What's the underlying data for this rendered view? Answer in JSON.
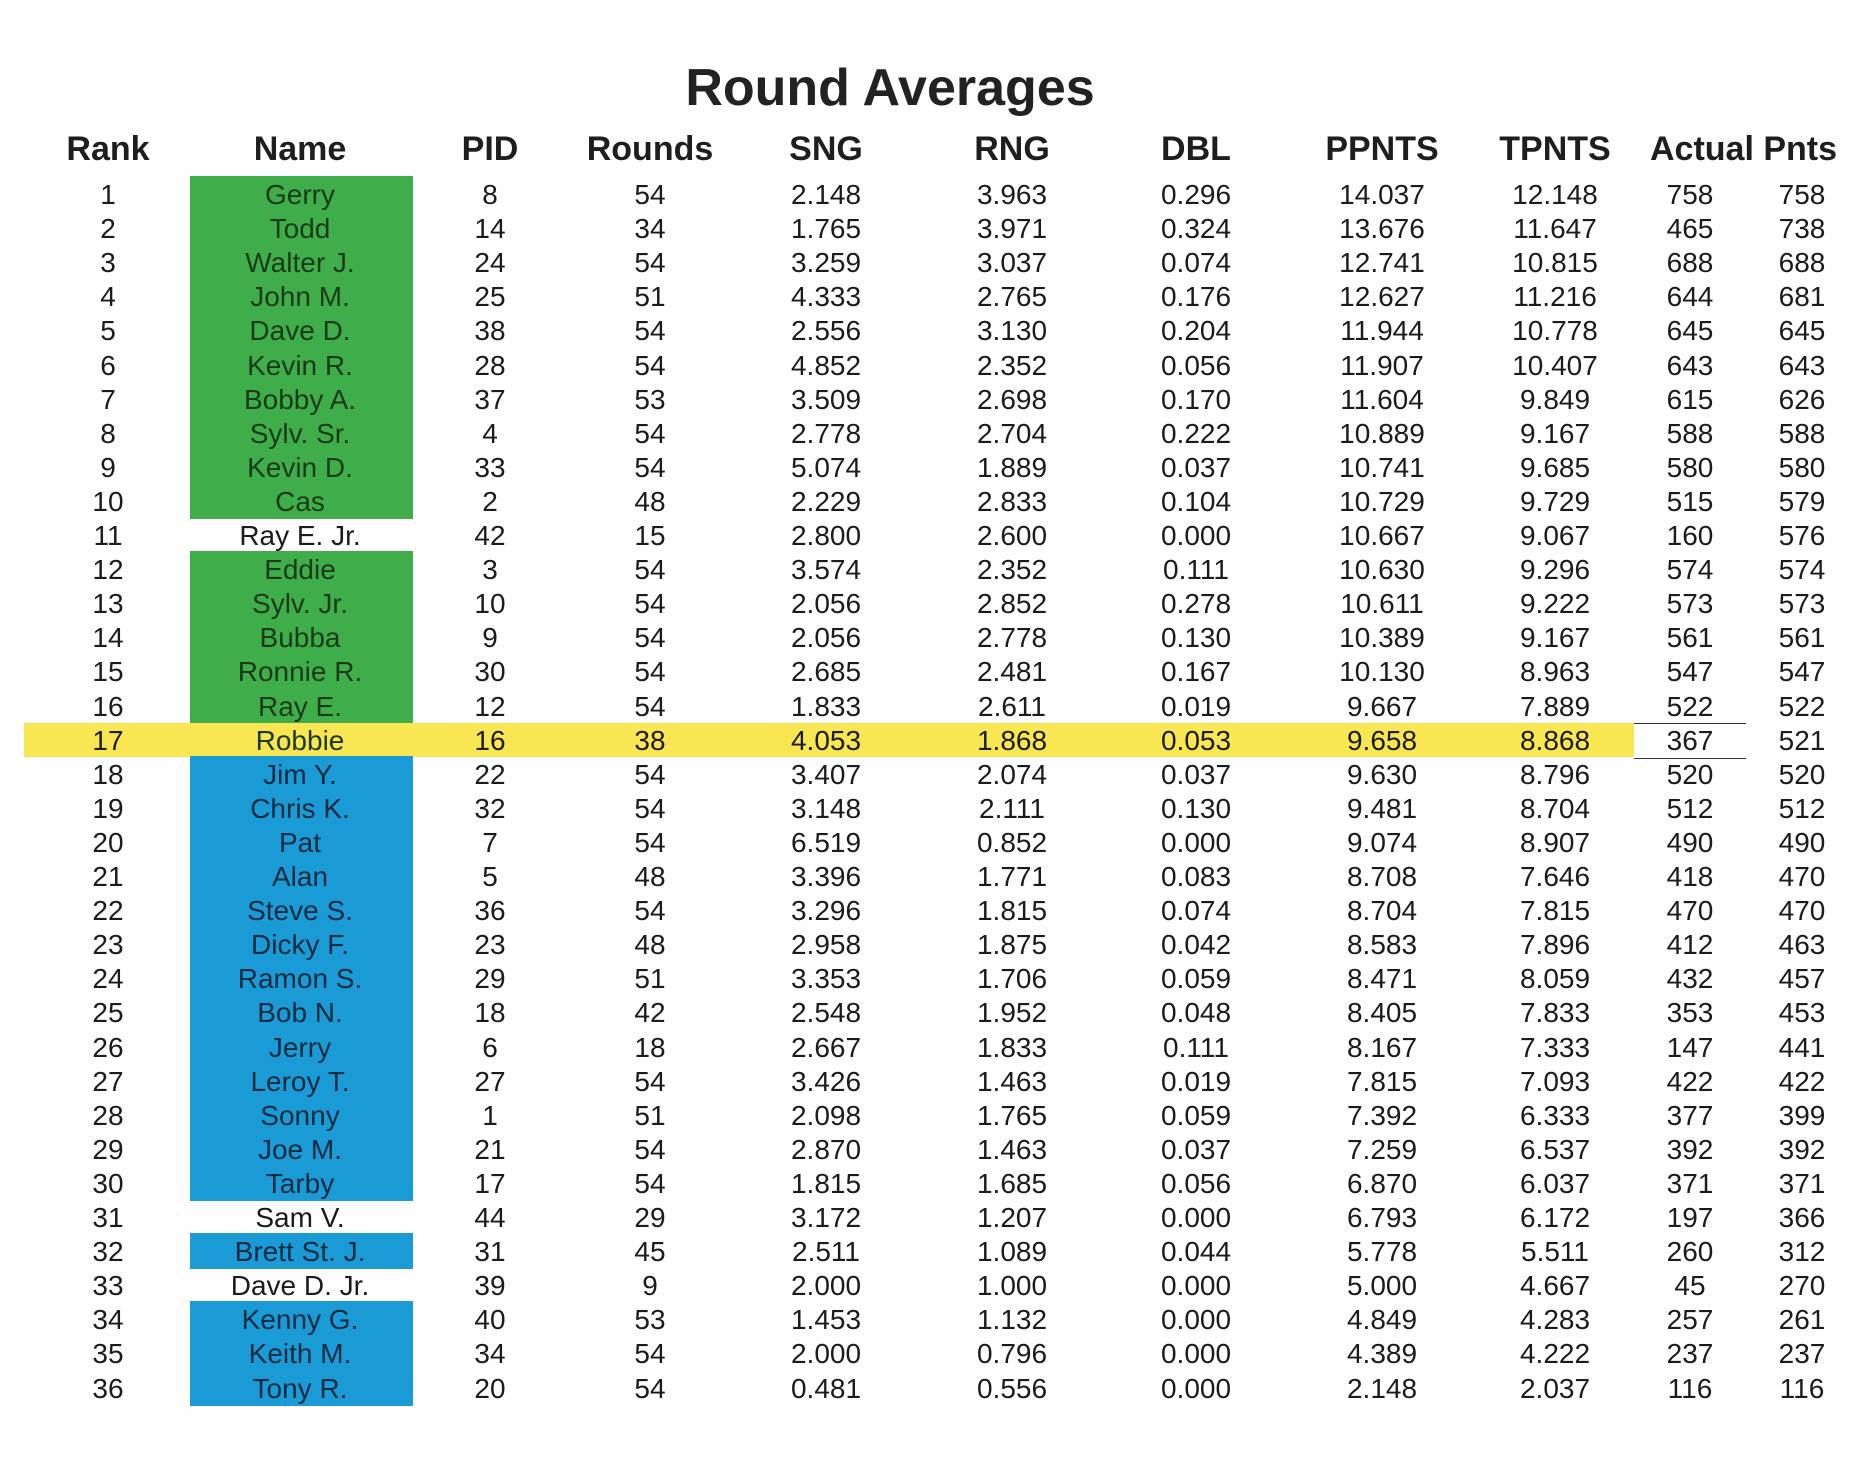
{
  "title": "Round Averages",
  "headers": {
    "rank": "Rank",
    "name": "Name",
    "pid": "PID",
    "rounds": "Rounds",
    "sng": "SNG",
    "rng": "RNG",
    "dbl": "DBL",
    "ppnts": "PPNTS",
    "tpnts": "TPNTS",
    "actual_pnts": "Actual Pnts"
  },
  "colors": {
    "green": "#3fae4a",
    "blue": "#1a9bd6",
    "highlight": "#f9e653"
  },
  "rows": [
    {
      "rank": "1",
      "name": "Gerry",
      "pid": "8",
      "rounds": "54",
      "sng": "2.148",
      "rng": "3.963",
      "dbl": "0.296",
      "ppnts": "14.037",
      "tpnts": "12.148",
      "actual": "758",
      "pnts": "758",
      "color": "green"
    },
    {
      "rank": "2",
      "name": "Todd",
      "pid": "14",
      "rounds": "34",
      "sng": "1.765",
      "rng": "3.971",
      "dbl": "0.324",
      "ppnts": "13.676",
      "tpnts": "11.647",
      "actual": "465",
      "pnts": "738",
      "color": "green"
    },
    {
      "rank": "3",
      "name": "Walter J.",
      "pid": "24",
      "rounds": "54",
      "sng": "3.259",
      "rng": "3.037",
      "dbl": "0.074",
      "ppnts": "12.741",
      "tpnts": "10.815",
      "actual": "688",
      "pnts": "688",
      "color": "green"
    },
    {
      "rank": "4",
      "name": "John M.",
      "pid": "25",
      "rounds": "51",
      "sng": "4.333",
      "rng": "2.765",
      "dbl": "0.176",
      "ppnts": "12.627",
      "tpnts": "11.216",
      "actual": "644",
      "pnts": "681",
      "color": "green"
    },
    {
      "rank": "5",
      "name": "Dave D.",
      "pid": "38",
      "rounds": "54",
      "sng": "2.556",
      "rng": "3.130",
      "dbl": "0.204",
      "ppnts": "11.944",
      "tpnts": "10.778",
      "actual": "645",
      "pnts": "645",
      "color": "green"
    },
    {
      "rank": "6",
      "name": "Kevin R.",
      "pid": "28",
      "rounds": "54",
      "sng": "4.852",
      "rng": "2.352",
      "dbl": "0.056",
      "ppnts": "11.907",
      "tpnts": "10.407",
      "actual": "643",
      "pnts": "643",
      "color": "green"
    },
    {
      "rank": "7",
      "name": "Bobby A.",
      "pid": "37",
      "rounds": "53",
      "sng": "3.509",
      "rng": "2.698",
      "dbl": "0.170",
      "ppnts": "11.604",
      "tpnts": "9.849",
      "actual": "615",
      "pnts": "626",
      "color": "green"
    },
    {
      "rank": "8",
      "name": "Sylv. Sr.",
      "pid": "4",
      "rounds": "54",
      "sng": "2.778",
      "rng": "2.704",
      "dbl": "0.222",
      "ppnts": "10.889",
      "tpnts": "9.167",
      "actual": "588",
      "pnts": "588",
      "color": "green"
    },
    {
      "rank": "9",
      "name": "Kevin D.",
      "pid": "33",
      "rounds": "54",
      "sng": "5.074",
      "rng": "1.889",
      "dbl": "0.037",
      "ppnts": "10.741",
      "tpnts": "9.685",
      "actual": "580",
      "pnts": "580",
      "color": "green"
    },
    {
      "rank": "10",
      "name": "Cas",
      "pid": "2",
      "rounds": "48",
      "sng": "2.229",
      "rng": "2.833",
      "dbl": "0.104",
      "ppnts": "10.729",
      "tpnts": "9.729",
      "actual": "515",
      "pnts": "579",
      "color": "green"
    },
    {
      "rank": "11",
      "name": "Ray E. Jr.",
      "pid": "42",
      "rounds": "15",
      "sng": "2.800",
      "rng": "2.600",
      "dbl": "0.000",
      "ppnts": "10.667",
      "tpnts": "9.067",
      "actual": "160",
      "pnts": "576",
      "color": "white"
    },
    {
      "rank": "12",
      "name": "Eddie",
      "pid": "3",
      "rounds": "54",
      "sng": "3.574",
      "rng": "2.352",
      "dbl": "0.111",
      "ppnts": "10.630",
      "tpnts": "9.296",
      "actual": "574",
      "pnts": "574",
      "color": "green"
    },
    {
      "rank": "13",
      "name": "Sylv. Jr.",
      "pid": "10",
      "rounds": "54",
      "sng": "2.056",
      "rng": "2.852",
      "dbl": "0.278",
      "ppnts": "10.611",
      "tpnts": "9.222",
      "actual": "573",
      "pnts": "573",
      "color": "green"
    },
    {
      "rank": "14",
      "name": "Bubba",
      "pid": "9",
      "rounds": "54",
      "sng": "2.056",
      "rng": "2.778",
      "dbl": "0.130",
      "ppnts": "10.389",
      "tpnts": "9.167",
      "actual": "561",
      "pnts": "561",
      "color": "green"
    },
    {
      "rank": "15",
      "name": "Ronnie R.",
      "pid": "30",
      "rounds": "54",
      "sng": "2.685",
      "rng": "2.481",
      "dbl": "0.167",
      "ppnts": "10.130",
      "tpnts": "8.963",
      "actual": "547",
      "pnts": "547",
      "color": "green"
    },
    {
      "rank": "16",
      "name": "Ray E.",
      "pid": "12",
      "rounds": "54",
      "sng": "1.833",
      "rng": "2.611",
      "dbl": "0.019",
      "ppnts": "9.667",
      "tpnts": "7.889",
      "actual": "522",
      "pnts": "522",
      "color": "green"
    },
    {
      "rank": "17",
      "name": "Robbie",
      "pid": "16",
      "rounds": "38",
      "sng": "4.053",
      "rng": "1.868",
      "dbl": "0.053",
      "ppnts": "9.658",
      "tpnts": "8.868",
      "actual": "367",
      "pnts": "521",
      "color": "highlight"
    },
    {
      "rank": "18",
      "name": "Jim Y.",
      "pid": "22",
      "rounds": "54",
      "sng": "3.407",
      "rng": "2.074",
      "dbl": "0.037",
      "ppnts": "9.630",
      "tpnts": "8.796",
      "actual": "520",
      "pnts": "520",
      "color": "blue"
    },
    {
      "rank": "19",
      "name": "Chris K.",
      "pid": "32",
      "rounds": "54",
      "sng": "3.148",
      "rng": "2.111",
      "dbl": "0.130",
      "ppnts": "9.481",
      "tpnts": "8.704",
      "actual": "512",
      "pnts": "512",
      "color": "blue"
    },
    {
      "rank": "20",
      "name": "Pat",
      "pid": "7",
      "rounds": "54",
      "sng": "6.519",
      "rng": "0.852",
      "dbl": "0.000",
      "ppnts": "9.074",
      "tpnts": "8.907",
      "actual": "490",
      "pnts": "490",
      "color": "blue"
    },
    {
      "rank": "21",
      "name": "Alan",
      "pid": "5",
      "rounds": "48",
      "sng": "3.396",
      "rng": "1.771",
      "dbl": "0.083",
      "ppnts": "8.708",
      "tpnts": "7.646",
      "actual": "418",
      "pnts": "470",
      "color": "blue"
    },
    {
      "rank": "22",
      "name": "Steve S.",
      "pid": "36",
      "rounds": "54",
      "sng": "3.296",
      "rng": "1.815",
      "dbl": "0.074",
      "ppnts": "8.704",
      "tpnts": "7.815",
      "actual": "470",
      "pnts": "470",
      "color": "blue"
    },
    {
      "rank": "23",
      "name": "Dicky F.",
      "pid": "23",
      "rounds": "48",
      "sng": "2.958",
      "rng": "1.875",
      "dbl": "0.042",
      "ppnts": "8.583",
      "tpnts": "7.896",
      "actual": "412",
      "pnts": "463",
      "color": "blue"
    },
    {
      "rank": "24",
      "name": "Ramon S.",
      "pid": "29",
      "rounds": "51",
      "sng": "3.353",
      "rng": "1.706",
      "dbl": "0.059",
      "ppnts": "8.471",
      "tpnts": "8.059",
      "actual": "432",
      "pnts": "457",
      "color": "blue"
    },
    {
      "rank": "25",
      "name": "Bob N.",
      "pid": "18",
      "rounds": "42",
      "sng": "2.548",
      "rng": "1.952",
      "dbl": "0.048",
      "ppnts": "8.405",
      "tpnts": "7.833",
      "actual": "353",
      "pnts": "453",
      "color": "blue"
    },
    {
      "rank": "26",
      "name": "Jerry",
      "pid": "6",
      "rounds": "18",
      "sng": "2.667",
      "rng": "1.833",
      "dbl": "0.111",
      "ppnts": "8.167",
      "tpnts": "7.333",
      "actual": "147",
      "pnts": "441",
      "color": "blue"
    },
    {
      "rank": "27",
      "name": "Leroy T.",
      "pid": "27",
      "rounds": "54",
      "sng": "3.426",
      "rng": "1.463",
      "dbl": "0.019",
      "ppnts": "7.815",
      "tpnts": "7.093",
      "actual": "422",
      "pnts": "422",
      "color": "blue"
    },
    {
      "rank": "28",
      "name": "Sonny",
      "pid": "1",
      "rounds": "51",
      "sng": "2.098",
      "rng": "1.765",
      "dbl": "0.059",
      "ppnts": "7.392",
      "tpnts": "6.333",
      "actual": "377",
      "pnts": "399",
      "color": "blue"
    },
    {
      "rank": "29",
      "name": "Joe M.",
      "pid": "21",
      "rounds": "54",
      "sng": "2.870",
      "rng": "1.463",
      "dbl": "0.037",
      "ppnts": "7.259",
      "tpnts": "6.537",
      "actual": "392",
      "pnts": "392",
      "color": "blue"
    },
    {
      "rank": "30",
      "name": "Tarby",
      "pid": "17",
      "rounds": "54",
      "sng": "1.815",
      "rng": "1.685",
      "dbl": "0.056",
      "ppnts": "6.870",
      "tpnts": "6.037",
      "actual": "371",
      "pnts": "371",
      "color": "blue"
    },
    {
      "rank": "31",
      "name": "Sam V.",
      "pid": "44",
      "rounds": "29",
      "sng": "3.172",
      "rng": "1.207",
      "dbl": "0.000",
      "ppnts": "6.793",
      "tpnts": "6.172",
      "actual": "197",
      "pnts": "366",
      "color": "white"
    },
    {
      "rank": "32",
      "name": "Brett St. J.",
      "pid": "31",
      "rounds": "45",
      "sng": "2.511",
      "rng": "1.089",
      "dbl": "0.044",
      "ppnts": "5.778",
      "tpnts": "5.511",
      "actual": "260",
      "pnts": "312",
      "color": "blue"
    },
    {
      "rank": "33",
      "name": "Dave D. Jr.",
      "pid": "39",
      "rounds": "9",
      "sng": "2.000",
      "rng": "1.000",
      "dbl": "0.000",
      "ppnts": "5.000",
      "tpnts": "4.667",
      "actual": "45",
      "pnts": "270",
      "color": "white"
    },
    {
      "rank": "34",
      "name": "Kenny G.",
      "pid": "40",
      "rounds": "53",
      "sng": "1.453",
      "rng": "1.132",
      "dbl": "0.000",
      "ppnts": "4.849",
      "tpnts": "4.283",
      "actual": "257",
      "pnts": "261",
      "color": "blue"
    },
    {
      "rank": "35",
      "name": "Keith M.",
      "pid": "34",
      "rounds": "54",
      "sng": "2.000",
      "rng": "0.796",
      "dbl": "0.000",
      "ppnts": "4.389",
      "tpnts": "4.222",
      "actual": "237",
      "pnts": "237",
      "color": "blue"
    },
    {
      "rank": "36",
      "name": "Tony R.",
      "pid": "20",
      "rounds": "54",
      "sng": "0.481",
      "rng": "0.556",
      "dbl": "0.000",
      "ppnts": "2.148",
      "tpnts": "2.037",
      "actual": "116",
      "pnts": "116",
      "color": "blue"
    }
  ]
}
